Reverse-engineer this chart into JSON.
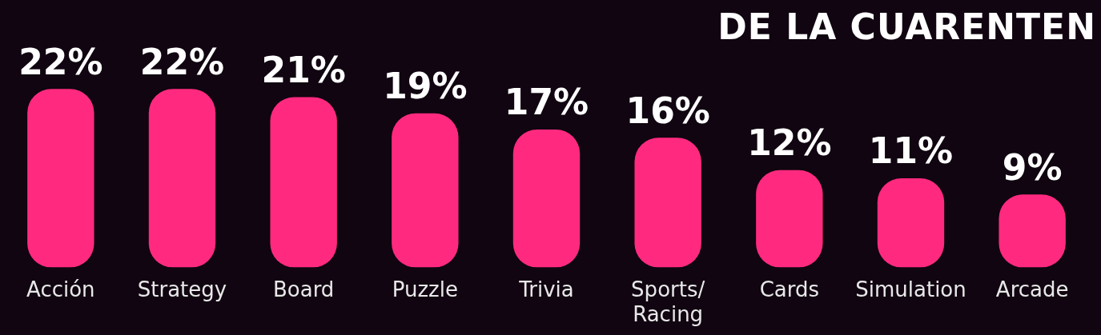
{
  "chart_data": {
    "type": "bar",
    "title": "DE LA CUARENTEN",
    "categories": [
      "Acción",
      "Strategy",
      "Board",
      "Puzzle",
      "Trivia",
      "Sports/ Racing",
      "Cards",
      "Simulation",
      "Arcade"
    ],
    "values": [
      22,
      22,
      21,
      19,
      17,
      16,
      12,
      11,
      9
    ],
    "value_labels": [
      "22%",
      "22%",
      "21%",
      "19%",
      "17%",
      "16%",
      "12%",
      "11%",
      "9%"
    ],
    "color": "#ff2a7f",
    "grid": false,
    "legend": false
  }
}
